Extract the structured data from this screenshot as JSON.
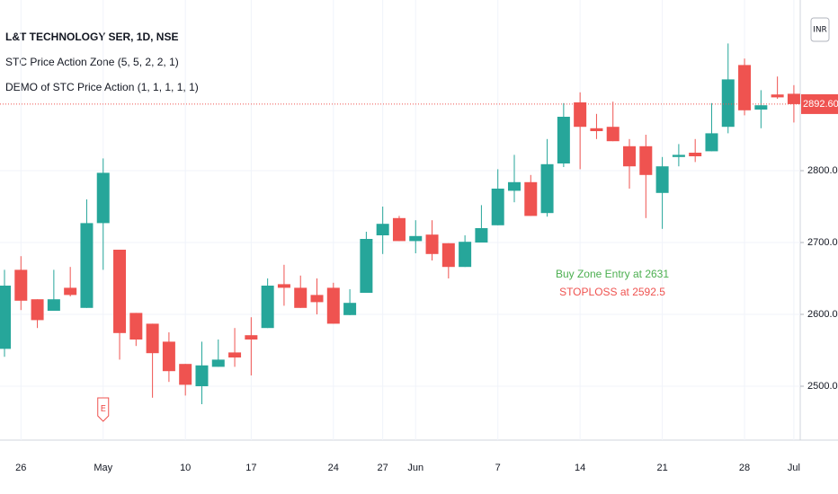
{
  "chart_data": {
    "type": "candlestick",
    "title": "L&T TECHNOLOGY SER, 1D, NSE",
    "indicators": [
      "STC Price Action Zone (5, 5, 2, 2, 1)",
      "DEMO of STC Price Action (1, 1, 1, 1, 1)"
    ],
    "currency": "INR",
    "up_color": "#26a69a",
    "down_color": "#ef5350",
    "categories": [
      null,
      "26",
      null,
      null,
      null,
      null,
      "May",
      null,
      null,
      null,
      null,
      "10",
      null,
      null,
      null,
      "17",
      null,
      null,
      null,
      null,
      "24",
      null,
      null,
      "27",
      null,
      "Jun",
      null,
      null,
      null,
      null,
      "7",
      null,
      null,
      null,
      null,
      "14",
      null,
      null,
      null,
      null,
      "21",
      null,
      null,
      null,
      null,
      "28",
      null,
      null,
      "Jul"
    ],
    "open": [
      2552,
      2662,
      2621,
      2605,
      2637,
      2609,
      2727,
      2690,
      2602,
      2587,
      2562,
      2531,
      2500,
      2527,
      2547,
      2571,
      2581,
      2642,
      2637,
      2627,
      2637,
      2599,
      2630,
      2710,
      2734,
      2702,
      2711,
      2699,
      2666,
      2700,
      2724,
      2772,
      2784,
      2741,
      2810,
      2895,
      2859,
      2861,
      2834,
      2834,
      2769,
      2819,
      2825,
      2827,
      2861,
      2947,
      2885,
      2906,
      2907
    ],
    "high": [
      2662,
      2681,
      2621,
      2662,
      2666,
      2760,
      2817,
      2690,
      2602,
      2587,
      2575,
      2531,
      2562,
      2565,
      2581,
      2596,
      2650,
      2669,
      2654,
      2650,
      2644,
      2635,
      2715,
      2750,
      2737,
      2731,
      2731,
      2699,
      2710,
      2752,
      2802,
      2822,
      2794,
      2844,
      2894,
      2909,
      2879,
      2896,
      2844,
      2850,
      2819,
      2837,
      2844,
      2894,
      2977,
      2956,
      2912,
      2931,
      2919
    ],
    "low": [
      2541,
      2606,
      2581,
      2605,
      2625,
      2609,
      2662,
      2537,
      2556,
      2484,
      2506,
      2487,
      2475,
      2527,
      2527,
      2515,
      2581,
      2612,
      2609,
      2600,
      2587,
      2599,
      2630,
      2684,
      2702,
      2685,
      2675,
      2650,
      2666,
      2700,
      2724,
      2756,
      2737,
      2736,
      2805,
      2802,
      2844,
      2841,
      2775,
      2734,
      2719,
      2806,
      2812,
      2827,
      2852,
      2877,
      2859,
      2900,
      2867
    ],
    "close": [
      2640,
      2619,
      2592,
      2621,
      2627,
      2727,
      2797,
      2574,
      2565,
      2546,
      2521,
      2502,
      2529,
      2537,
      2540,
      2565,
      2640,
      2637,
      2609,
      2617,
      2587,
      2616,
      2705,
      2726,
      2702,
      2709,
      2684,
      2666,
      2701,
      2720,
      2775,
      2784,
      2737,
      2809,
      2875,
      2861,
      2855,
      2841,
      2806,
      2794,
      2806,
      2822,
      2820,
      2852,
      2927,
      2884,
      2891,
      2902,
      2892.6
    ],
    "last_price": {
      "value": 2892.6,
      "label": "2892.60"
    },
    "ylim": [
      2425,
      3037.5
    ],
    "yticks": [
      {
        "value": 2500,
        "label": "2500.00"
      },
      {
        "value": 2600,
        "label": "2600.00"
      },
      {
        "value": 2700,
        "label": "2700.00"
      },
      {
        "value": 2800,
        "label": "2800.00"
      }
    ],
    "grid": true,
    "annotations": [
      {
        "text": "Buy Zone Entry at 2631",
        "color": "#4caf50"
      },
      {
        "text": "STOPLOSS at 2592.5",
        "color": "#ef5350"
      }
    ],
    "earnings_marker": "E"
  }
}
